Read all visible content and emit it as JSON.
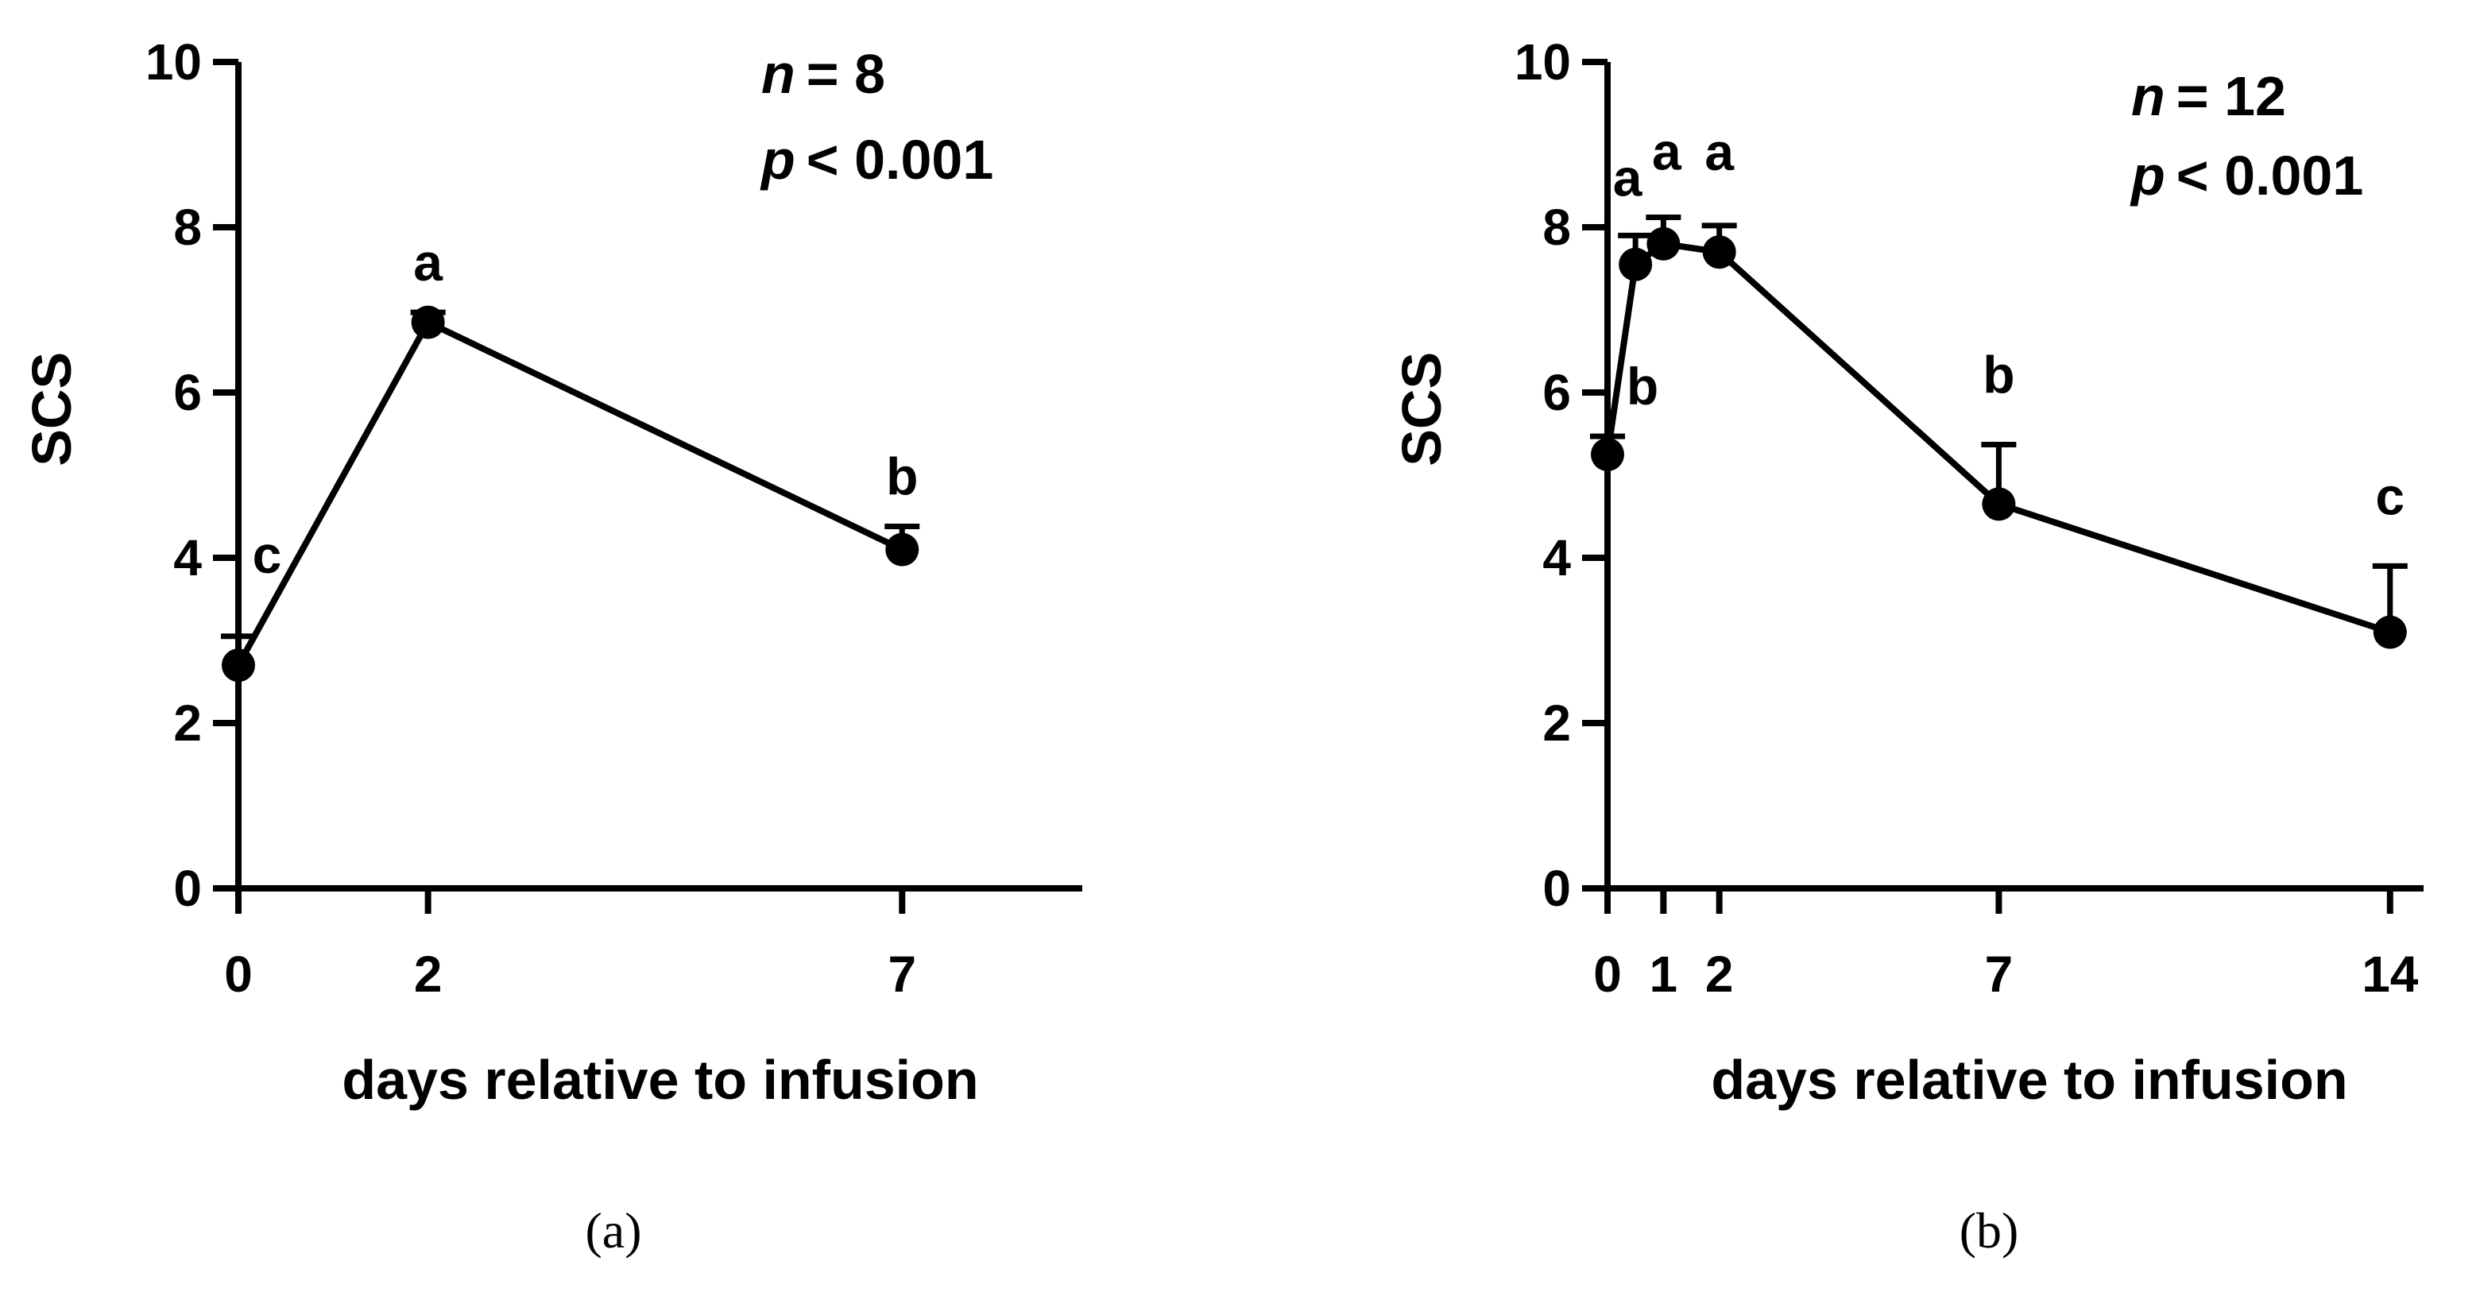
{
  "chart_data": [
    {
      "type": "line",
      "panel_label": "(a)",
      "xlabel": "days relative to infusion",
      "ylabel": "SCS",
      "ylim": [
        0,
        10
      ],
      "yticks": [
        0,
        2,
        4,
        6,
        8,
        10
      ],
      "xlim": [
        0,
        8.9
      ],
      "xticks": [
        0,
        2,
        7
      ],
      "annotation_n": "= 8",
      "annotation_p": "< 0.001",
      "series": [
        {
          "x": [
            0,
            2,
            7
          ],
          "y": [
            2.7,
            6.85,
            4.1
          ],
          "error_upper": [
            0.35,
            0.12,
            0.28
          ],
          "letters": [
            "c",
            "a",
            "b"
          ]
        }
      ],
      "line_color": "#000000"
    },
    {
      "type": "line",
      "panel_label": "(b)",
      "xlabel": "days relative to infusion",
      "ylabel": "SCS",
      "ylim": [
        0,
        10
      ],
      "yticks": [
        0,
        2,
        4,
        6,
        8,
        10
      ],
      "xlim": [
        0,
        14.6
      ],
      "xticks": [
        0,
        1,
        2,
        7,
        14
      ],
      "annotation_n": "= 12",
      "annotation_p": "< 0.001",
      "series": [
        {
          "x": [
            0,
            0.5,
            1,
            2,
            7,
            14
          ],
          "y": [
            5.25,
            7.55,
            7.8,
            7.7,
            4.65,
            3.1
          ],
          "error_upper": [
            0.22,
            0.35,
            0.32,
            0.32,
            0.72,
            0.8
          ],
          "letters": [
            "b",
            "a",
            "a",
            "a",
            "b",
            "c"
          ]
        }
      ],
      "line_color": "#000000"
    }
  ],
  "labels": {
    "n_symbol": "n",
    "p_symbol": "p"
  }
}
